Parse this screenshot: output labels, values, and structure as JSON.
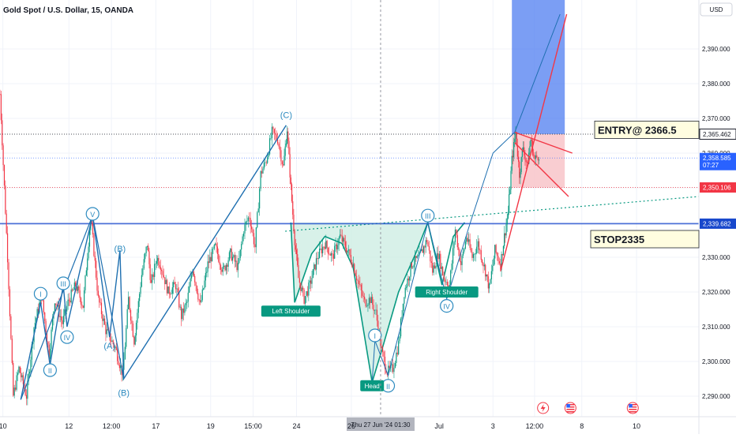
{
  "header": {
    "title": "Gold Spot / U.S. Dollar, 15, OANDA",
    "currency_button": "USD"
  },
  "chart_data": {
    "type": "candlestick",
    "symbol": "Gold Spot / U.S. Dollar",
    "interval": "15",
    "exchange": "OANDA",
    "ylim": [
      2286,
      2400
    ],
    "y_ticks": [
      2290,
      2300,
      2310,
      2320,
      2330,
      2340,
      2350,
      2360,
      2370,
      2380,
      2390
    ],
    "y_tick_labels": [
      "2,290.000",
      "2,300.000",
      "2,310.000",
      "2,320.000",
      "2,330.000",
      "2,340.000",
      "2,350.000",
      "2,360.000",
      "2,370.000",
      "2,380.000",
      "2,390.000"
    ],
    "x_ticks": [
      {
        "label": "10",
        "t": 3
      },
      {
        "label": "12",
        "t": 73
      },
      {
        "label": "12:00",
        "t": 118
      },
      {
        "label": "17",
        "t": 165
      },
      {
        "label": "19",
        "t": 223
      },
      {
        "label": "15:00",
        "t": 268
      },
      {
        "label": "24",
        "t": 314
      },
      {
        "label": "26",
        "t": 372
      },
      {
        "label": "Jul",
        "t": 465
      },
      {
        "label": "3",
        "t": 522
      },
      {
        "label": "12:00",
        "t": 566
      },
      {
        "label": "8",
        "t": 616
      },
      {
        "label": "10",
        "t": 674
      }
    ],
    "crosshair": {
      "t": 403,
      "label": "Thu 27 Jun '24  01:30"
    },
    "price_path": [
      [
        0,
        2377
      ],
      [
        8,
        2330
      ],
      [
        14,
        2290
      ],
      [
        20,
        2298
      ],
      [
        28,
        2290
      ],
      [
        36,
        2310
      ],
      [
        44,
        2319
      ],
      [
        52,
        2302
      ],
      [
        58,
        2318
      ],
      [
        66,
        2311
      ],
      [
        72,
        2317
      ],
      [
        80,
        2322
      ],
      [
        88,
        2316
      ],
      [
        96,
        2342
      ],
      [
        104,
        2318
      ],
      [
        112,
        2309
      ],
      [
        122,
        2304
      ],
      [
        130,
        2296
      ],
      [
        136,
        2318
      ],
      [
        142,
        2306
      ],
      [
        150,
        2325
      ],
      [
        156,
        2334
      ],
      [
        160,
        2322
      ],
      [
        166,
        2330
      ],
      [
        170,
        2328
      ],
      [
        178,
        2320
      ],
      [
        186,
        2322
      ],
      [
        192,
        2313
      ],
      [
        198,
        2317
      ],
      [
        204,
        2327
      ],
      [
        212,
        2316
      ],
      [
        220,
        2328
      ],
      [
        228,
        2333
      ],
      [
        236,
        2326
      ],
      [
        244,
        2331
      ],
      [
        252,
        2327
      ],
      [
        258,
        2338
      ],
      [
        264,
        2342
      ],
      [
        270,
        2333
      ],
      [
        276,
        2354
      ],
      [
        282,
        2358
      ],
      [
        288,
        2366
      ],
      [
        294,
        2364
      ],
      [
        300,
        2356
      ],
      [
        304,
        2367
      ],
      [
        308,
        2350
      ],
      [
        312,
        2335
      ],
      [
        316,
        2324
      ],
      [
        322,
        2318
      ],
      [
        328,
        2322
      ],
      [
        336,
        2330
      ],
      [
        344,
        2334
      ],
      [
        352,
        2330
      ],
      [
        360,
        2336
      ],
      [
        368,
        2332
      ],
      [
        374,
        2328
      ],
      [
        380,
        2322
      ],
      [
        386,
        2317
      ],
      [
        392,
        2318
      ],
      [
        398,
        2314
      ],
      [
        404,
        2303
      ],
      [
        410,
        2297
      ],
      [
        416,
        2298
      ],
      [
        422,
        2305
      ],
      [
        428,
        2320
      ],
      [
        436,
        2328
      ],
      [
        444,
        2330
      ],
      [
        452,
        2335
      ],
      [
        458,
        2326
      ],
      [
        464,
        2331
      ],
      [
        470,
        2324
      ],
      [
        476,
        2322
      ],
      [
        482,
        2338
      ],
      [
        488,
        2328
      ],
      [
        494,
        2336
      ],
      [
        500,
        2330
      ],
      [
        506,
        2334
      ],
      [
        514,
        2326
      ],
      [
        518,
        2321
      ],
      [
        524,
        2332
      ],
      [
        530,
        2328
      ],
      [
        534,
        2336
      ],
      [
        538,
        2343
      ],
      [
        542,
        2358
      ],
      [
        546,
        2366
      ],
      [
        550,
        2354
      ],
      [
        554,
        2362
      ],
      [
        558,
        2356
      ],
      [
        562,
        2364
      ],
      [
        566,
        2358
      ],
      [
        572,
        2360
      ]
    ],
    "price_lines": [
      {
        "name": "entry",
        "value": 2365.462,
        "label": "2,365.462",
        "color": "#1e222d"
      },
      {
        "name": "current",
        "value": 2358.585,
        "label": "2,358.585",
        "timer": "07:27",
        "color": "#2962ff"
      },
      {
        "name": "target-low",
        "value": 2350.106,
        "label": "2,350.106",
        "color": "#f23645"
      },
      {
        "name": "stop",
        "value": 2339.682,
        "label": "2,339.682",
        "color": "#1848cc"
      }
    ],
    "callouts": [
      {
        "name": "entry-callout",
        "text": "ENTRY@ 2366.5",
        "value": 2366.5
      },
      {
        "name": "stop-callout",
        "text": "STOP2335",
        "value": 2335
      }
    ],
    "position": {
      "entry": 2365.462,
      "target": 2400,
      "stop": 2350.106,
      "t_start": 542,
      "t_end": 598,
      "profit_color": "#4f7df0",
      "loss_color": "#f8c8cc"
    },
    "wave_labels": [
      {
        "text": "I",
        "t": 43,
        "value": 2319.5,
        "circled": true
      },
      {
        "text": "II",
        "t": 53,
        "value": 2297.5,
        "circled": true
      },
      {
        "text": "III",
        "t": 67,
        "value": 2322.5,
        "circled": true
      },
      {
        "text": "IV",
        "t": 71,
        "value": 2307,
        "circled": true
      },
      {
        "text": "V",
        "t": 98,
        "value": 2342.5,
        "circled": true
      },
      {
        "text": "(A)",
        "t": 116,
        "value": 2304.5,
        "circled": false
      },
      {
        "text": "(B)",
        "t": 127,
        "value": 2332.5,
        "circled": false
      },
      {
        "text": "(B)",
        "t": 131,
        "value": 2291,
        "circled": false
      },
      {
        "text": "(C)",
        "t": 303,
        "value": 2371,
        "circled": false
      },
      {
        "text": "III",
        "t": 453,
        "value": 2342,
        "circled": true
      },
      {
        "text": "I",
        "t": 397,
        "value": 2307.5,
        "circled": true
      },
      {
        "text": "II",
        "t": 411,
        "value": 2293,
        "circled": true
      },
      {
        "text": "IV",
        "t": 473,
        "value": 2316,
        "circled": true
      }
    ],
    "pattern_labels": [
      {
        "text": "Left Shoulder",
        "t": 308,
        "value": 2314.5
      },
      {
        "text": "Head",
        "t": 394,
        "value": 2293
      },
      {
        "text": "Right Shoulder",
        "t": 473,
        "value": 2320
      }
    ],
    "event_icons": [
      {
        "kind": "lightning",
        "t": 575
      },
      {
        "kind": "us-flag",
        "t": 604
      },
      {
        "kind": "us-flag",
        "t": 670
      }
    ]
  }
}
